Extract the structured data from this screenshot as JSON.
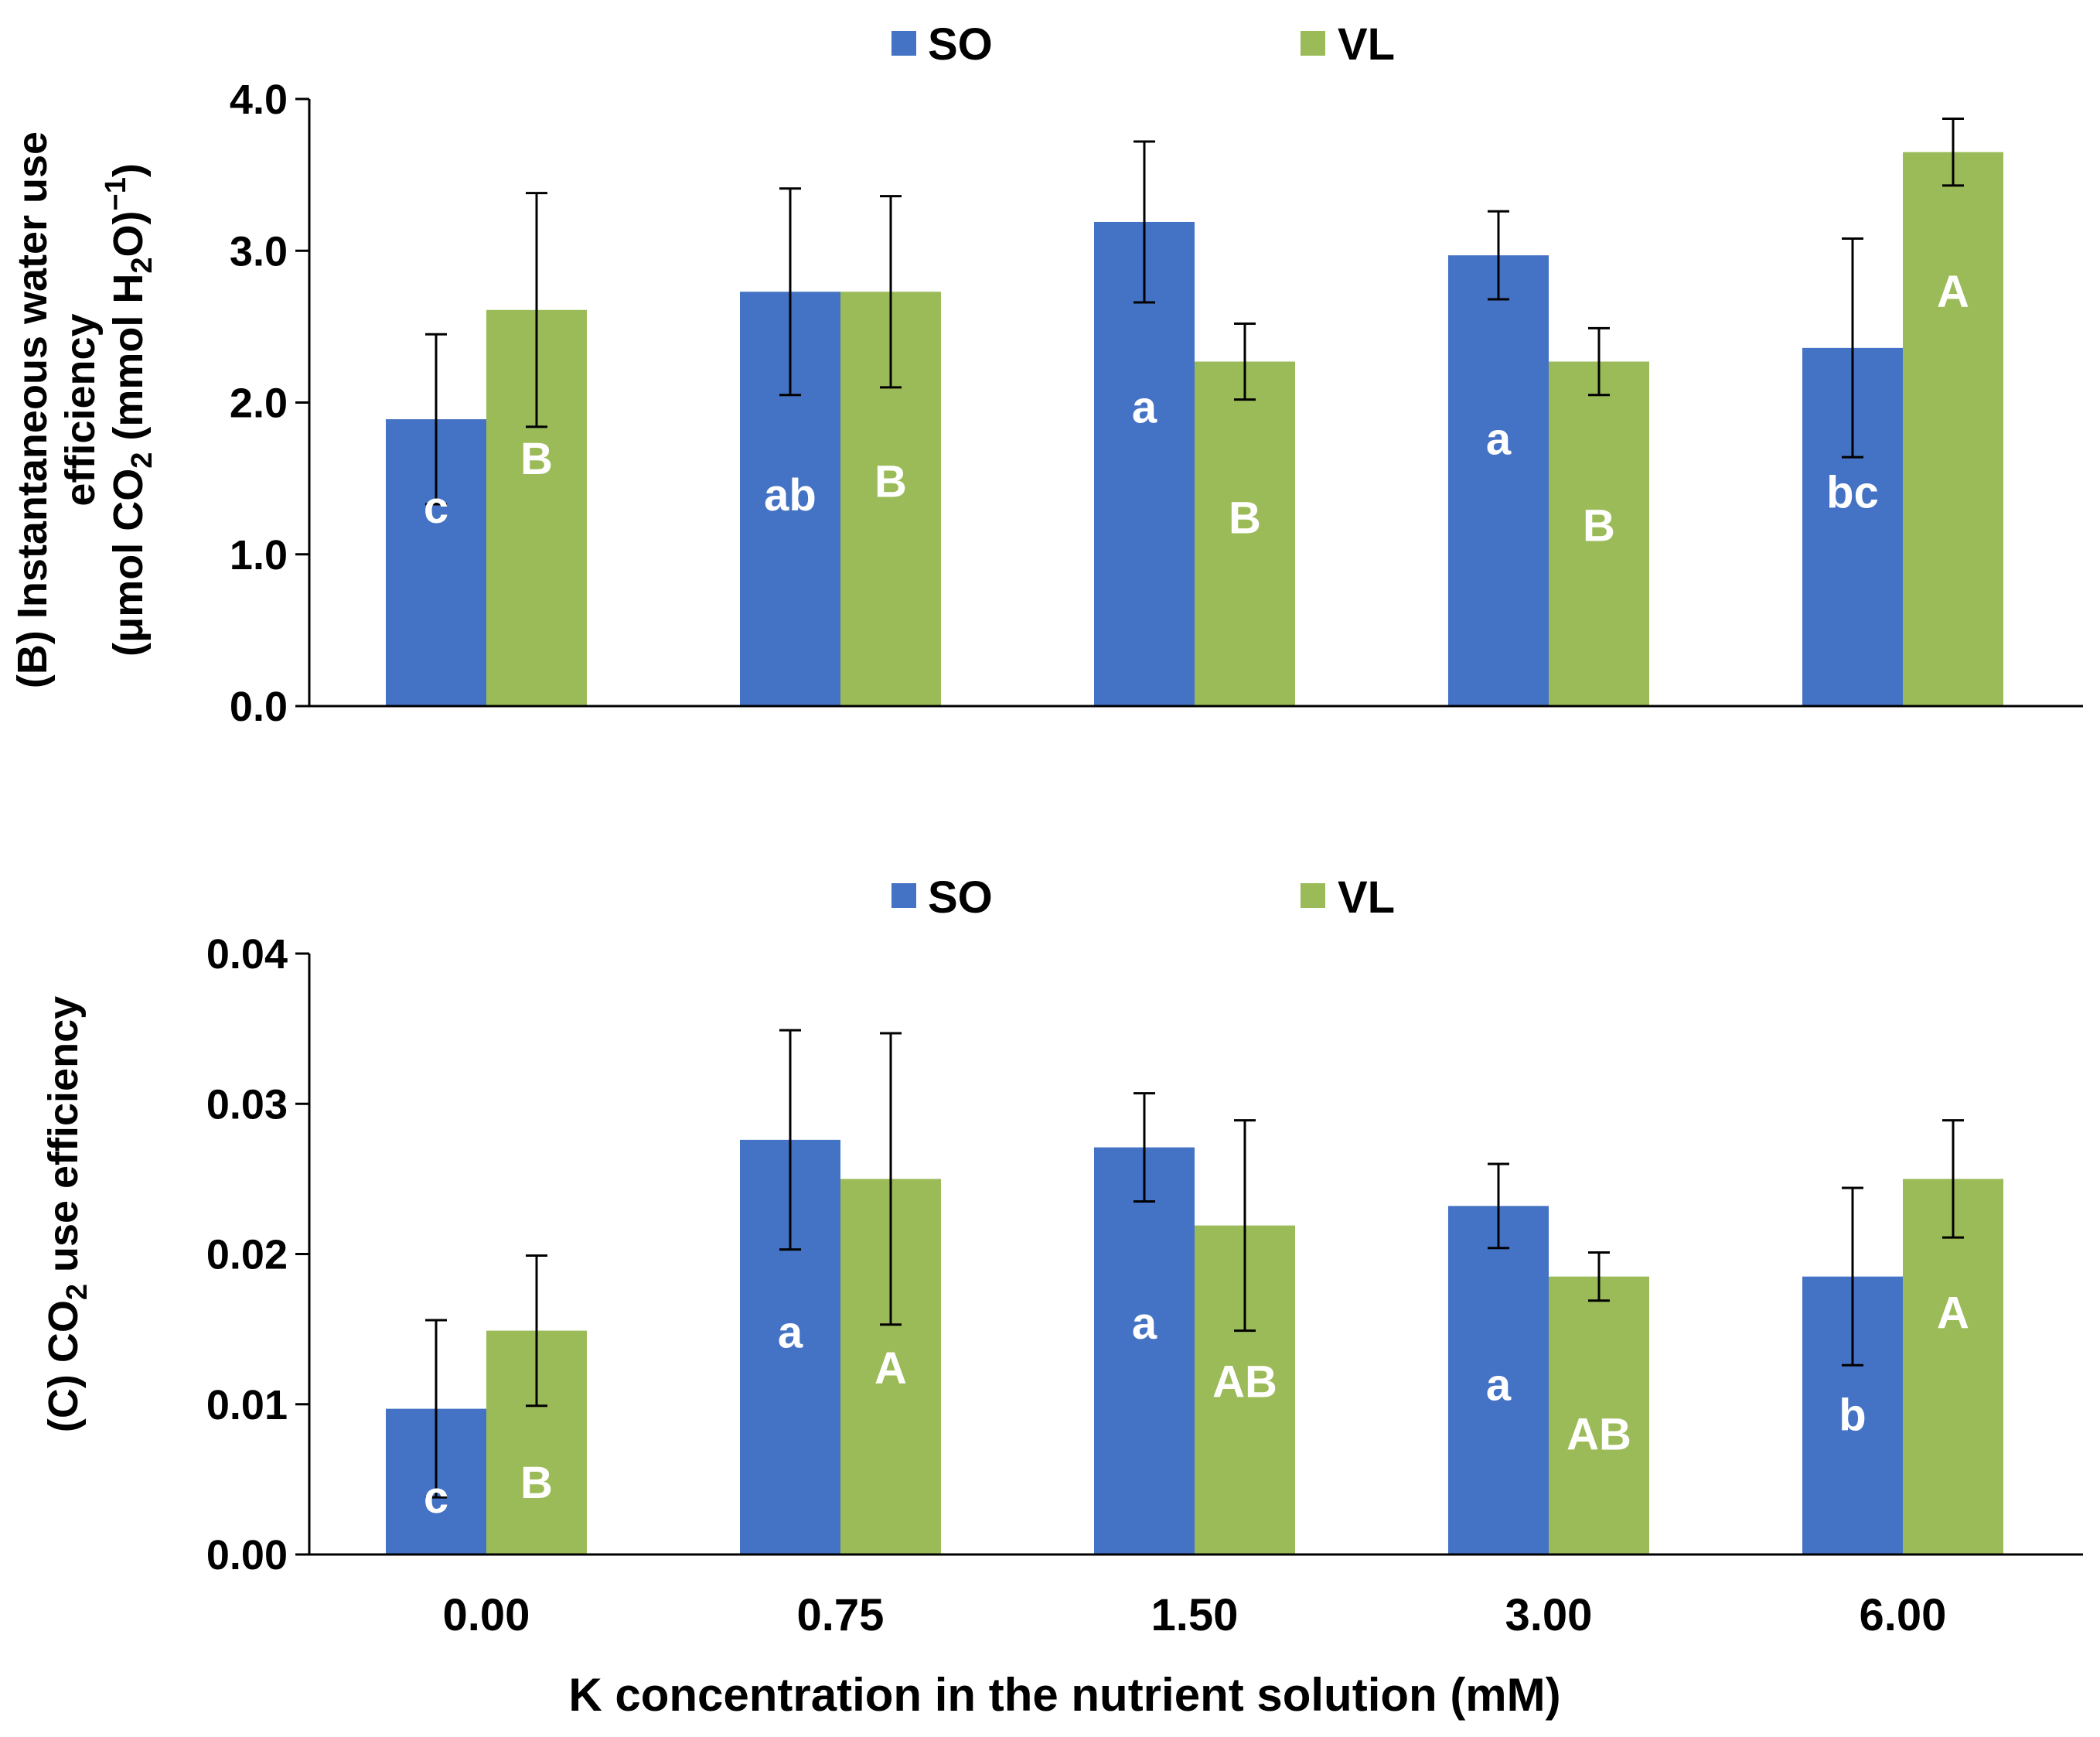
{
  "chart_data": [
    {
      "type": "bar",
      "panel": "B",
      "ylabel_line1": "(B) Instantaneous water use",
      "ylabel_line2": "efficiency",
      "ylabel_line3_parts": [
        "(μmol CO",
        "2",
        " (mmol H",
        "2",
        "O)",
        "−1",
        ")"
      ],
      "categories": [
        "0.00",
        "0.75",
        "1.50",
        "3.00",
        "6.00"
      ],
      "ylim": [
        0,
        4
      ],
      "yticks": [
        "0.0",
        "1.0",
        "2.0",
        "3.0",
        "4.0"
      ],
      "ytick_values": [
        0,
        1,
        2,
        3,
        4
      ],
      "legend_position": "top-center",
      "series": [
        {
          "name": "SO",
          "color": "#4472C4",
          "values": [
            1.89,
            2.73,
            3.19,
            2.97,
            2.36
          ],
          "errors": [
            0.56,
            0.68,
            0.53,
            0.29,
            0.72
          ],
          "labels": [
            "c",
            "ab",
            "a",
            "a",
            "bc"
          ],
          "label_values": [
            1.31,
            1.39,
            1.97,
            1.76,
            1.41
          ]
        },
        {
          "name": "VL",
          "color": "#9BBB59",
          "values": [
            2.61,
            2.73,
            2.27,
            2.27,
            3.65
          ],
          "errors": [
            0.77,
            0.63,
            0.25,
            0.22,
            0.22
          ],
          "labels": [
            "B",
            "B",
            "B",
            "B",
            "A"
          ],
          "label_values": [
            1.63,
            1.48,
            1.24,
            1.19,
            2.73
          ]
        }
      ]
    },
    {
      "type": "bar",
      "panel": "C",
      "ylabel_parts": [
        "(C) CO",
        "2",
        " use efficiency"
      ],
      "categories": [
        "0.00",
        "0.75",
        "1.50",
        "3.00",
        "6.00"
      ],
      "ylim": [
        0,
        0.04
      ],
      "yticks": [
        "0.00",
        "0.01",
        "0.02",
        "0.03",
        "0.04"
      ],
      "ytick_values": [
        0,
        0.01,
        0.02,
        0.03,
        0.04
      ],
      "xlabel": "K concentration in the nutrient solution (mM)",
      "legend_position": "top-center",
      "series": [
        {
          "name": "SO",
          "color": "#4472C4",
          "values": [
            0.0097,
            0.0276,
            0.0271,
            0.0232,
            0.0185
          ],
          "errors": [
            0.0059,
            0.0073,
            0.0036,
            0.0028,
            0.0059
          ],
          "labels": [
            "c",
            "a",
            "a",
            "a",
            "b"
          ],
          "label_values": [
            0.0038,
            0.0148,
            0.0154,
            0.0113,
            0.0093
          ]
        },
        {
          "name": "VL",
          "color": "#9BBB59",
          "values": [
            0.0149,
            0.025,
            0.0219,
            0.0185,
            0.025
          ],
          "errors": [
            0.005,
            0.0097,
            0.007,
            0.0016,
            0.0039
          ],
          "labels": [
            "B",
            "A",
            "AB",
            "AB",
            "A"
          ],
          "label_values": [
            0.0048,
            0.0124,
            0.0115,
            0.008,
            0.0161
          ]
        }
      ]
    }
  ]
}
